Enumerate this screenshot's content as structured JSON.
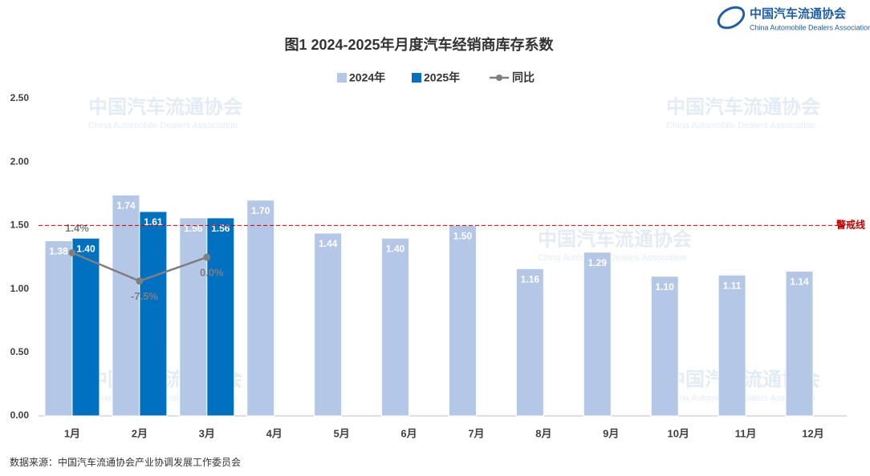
{
  "logo": {
    "name": "中国汽车流通协会",
    "english": "China Automobile Dealers Association"
  },
  "chart_data": {
    "type": "bar",
    "title": "图1  2024-2025年月度汽车经销商库存系数",
    "categories": [
      "1月",
      "2月",
      "3月",
      "4月",
      "5月",
      "6月",
      "7月",
      "8月",
      "9月",
      "10月",
      "11月",
      "12月"
    ],
    "series": [
      {
        "name": "2024年",
        "color": "#b4c7e7",
        "values": [
          1.38,
          1.74,
          1.56,
          1.7,
          1.44,
          1.4,
          1.5,
          1.16,
          1.29,
          1.1,
          1.11,
          1.14
        ],
        "value_labels": [
          "1.38",
          "1.74",
          "1.56",
          "1.70",
          "1.44",
          "1.40",
          "1.50",
          "1.16",
          "1.29",
          "1.10",
          "1.11",
          "1.14"
        ]
      },
      {
        "name": "2025年",
        "color": "#0070c0",
        "values": [
          1.4,
          1.61,
          1.56,
          null,
          null,
          null,
          null,
          null,
          null,
          null,
          null,
          null
        ],
        "value_labels": [
          "1.40",
          "1.61",
          "1.56",
          null,
          null,
          null,
          null,
          null,
          null,
          null,
          null,
          null
        ]
      },
      {
        "name": "同比",
        "type": "line",
        "axis": "y2",
        "color": "#7f7f7f",
        "values": [
          1.4,
          -7.5,
          0.0,
          null,
          null,
          null,
          null,
          null,
          null,
          null,
          null,
          null
        ],
        "value_labels": [
          "1.4%",
          "-7.5%",
          "0.0%",
          null,
          null,
          null,
          null,
          null,
          null,
          null,
          null,
          null
        ]
      }
    ],
    "ylim": [
      0,
      2.5
    ],
    "yticks": [
      {
        "value": 0,
        "label": "0.00"
      },
      {
        "value": 0.5,
        "label": "0.50"
      },
      {
        "value": 1,
        "label": "1.00"
      },
      {
        "value": 1.5,
        "label": "1.50"
      },
      {
        "value": 2,
        "label": "2.00"
      },
      {
        "value": 2.5,
        "label": "2.50"
      }
    ],
    "y2lim": [
      -50,
      50
    ],
    "reference_line": {
      "value": 1.5,
      "label": "警戒线",
      "color": "#c00000"
    },
    "legend": "top",
    "source": "数据来源：中国汽车流通协会产业协调发展工作委员会"
  }
}
